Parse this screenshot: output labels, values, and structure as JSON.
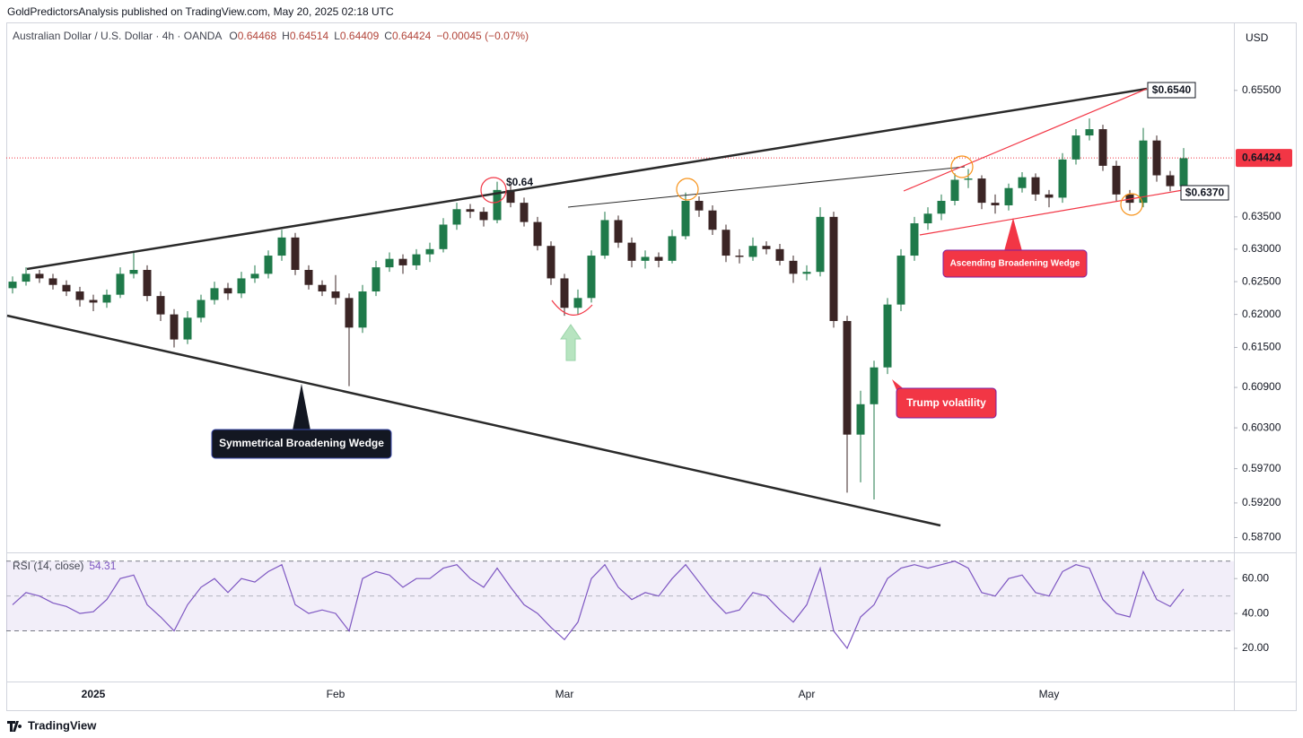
{
  "chart_data": {
    "type": "candlestick",
    "publisher": "GoldPredictorsAnalysis published on TradingView.com, May 20, 2025 02:18 UTC",
    "title": "Australian Dollar / U.S. Dollar · 4h · OANDA",
    "ohlc_labels": [
      "O",
      "H",
      "L",
      "C"
    ],
    "ohlc_values": [
      0.64468,
      0.64514,
      0.64409,
      0.64424
    ],
    "change": "−0.00045 (−0.07%)",
    "y_axis_unit": "USD",
    "brand": "TradingView",
    "categories": [
      null,
      null,
      null,
      null,
      null,
      null,
      "2025",
      null,
      null,
      null,
      null,
      null,
      null,
      null,
      null,
      null,
      null,
      null,
      null,
      null,
      null,
      null,
      null,
      null,
      "Feb",
      null,
      null,
      null,
      null,
      null,
      null,
      null,
      null,
      null,
      null,
      null,
      null,
      null,
      null,
      null,
      null,
      "Mar",
      null,
      null,
      null,
      null,
      null,
      null,
      null,
      null,
      null,
      null,
      null,
      null,
      null,
      null,
      null,
      null,
      null,
      "Apr",
      null,
      null,
      null,
      null,
      null,
      null,
      null,
      null,
      null,
      null,
      null,
      null,
      null,
      null,
      null,
      null,
      null,
      "May",
      null,
      null,
      null,
      null,
      null,
      null,
      null,
      null,
      null,
      null
    ],
    "open": [
      0.624,
      0.625,
      0.6262,
      0.6255,
      0.6245,
      0.6235,
      0.6222,
      0.6218,
      0.623,
      0.6262,
      0.6268,
      0.6228,
      0.62,
      0.6162,
      0.6195,
      0.6222,
      0.624,
      0.6232,
      0.6255,
      0.6262,
      0.629,
      0.6318,
      0.6268,
      0.6245,
      0.6235,
      0.6225,
      0.618,
      0.6235,
      0.6272,
      0.6285,
      0.6275,
      0.6292,
      0.63,
      0.6338,
      0.6362,
      0.6358,
      0.6345,
      0.6392,
      0.6372,
      0.6342,
      0.6305,
      0.6255,
      0.621,
      0.6225,
      0.629,
      0.6345,
      0.631,
      0.6282,
      0.6288,
      0.6282,
      0.632,
      0.6375,
      0.636,
      0.633,
      0.629,
      0.6288,
      0.6305,
      0.63,
      0.6282,
      0.6262,
      0.6265,
      0.635,
      0.619,
      0.602,
      0.6065,
      0.612,
      0.6215,
      0.629,
      0.634,
      0.6355,
      0.6375,
      0.6408,
      0.641,
      0.6372,
      0.6368,
      0.6395,
      0.6412,
      0.6385,
      0.638,
      0.644,
      0.6478,
      0.6488,
      0.643,
      0.6385,
      0.6372,
      0.647,
      0.6415,
      0.6398
    ],
    "high": [
      0.6258,
      0.6272,
      0.6268,
      0.6262,
      0.6252,
      0.6242,
      0.623,
      0.6238,
      0.6272,
      0.6295,
      0.6275,
      0.6235,
      0.6208,
      0.6205,
      0.623,
      0.625,
      0.6248,
      0.6265,
      0.6275,
      0.6298,
      0.633,
      0.6325,
      0.6275,
      0.6252,
      0.626,
      0.6232,
      0.6245,
      0.6282,
      0.6295,
      0.6292,
      0.63,
      0.631,
      0.6348,
      0.6372,
      0.637,
      0.6365,
      0.6405,
      0.64,
      0.638,
      0.635,
      0.6312,
      0.6262,
      0.6238,
      0.6298,
      0.6358,
      0.6352,
      0.6318,
      0.6298,
      0.6295,
      0.633,
      0.6388,
      0.6382,
      0.6368,
      0.6338,
      0.63,
      0.6318,
      0.6312,
      0.6308,
      0.629,
      0.6275,
      0.6365,
      0.6358,
      0.6198,
      0.6085,
      0.613,
      0.6225,
      0.63,
      0.635,
      0.6365,
      0.6385,
      0.6418,
      0.6425,
      0.6415,
      0.6385,
      0.6402,
      0.642,
      0.6418,
      0.6392,
      0.645,
      0.6488,
      0.6505,
      0.6495,
      0.6438,
      0.6392,
      0.649,
      0.6478,
      0.6422,
      0.6458
    ],
    "low": [
      0.6232,
      0.6244,
      0.6248,
      0.6238,
      0.6228,
      0.6212,
      0.6205,
      0.621,
      0.6225,
      0.6255,
      0.622,
      0.619,
      0.615,
      0.6155,
      0.6188,
      0.6215,
      0.6222,
      0.6225,
      0.6248,
      0.6255,
      0.6282,
      0.626,
      0.6238,
      0.6228,
      0.6215,
      0.6092,
      0.6172,
      0.6228,
      0.6265,
      0.6262,
      0.6268,
      0.628,
      0.6295,
      0.633,
      0.6348,
      0.6335,
      0.634,
      0.6365,
      0.6335,
      0.6298,
      0.6245,
      0.6198,
      0.62,
      0.6218,
      0.6285,
      0.6302,
      0.6272,
      0.627,
      0.6272,
      0.6278,
      0.6315,
      0.635,
      0.6322,
      0.628,
      0.6278,
      0.6282,
      0.6292,
      0.6275,
      0.6248,
      0.6252,
      0.6258,
      0.618,
      0.5935,
      0.595,
      0.5925,
      0.611,
      0.6205,
      0.6282,
      0.633,
      0.6345,
      0.6368,
      0.6395,
      0.6362,
      0.6355,
      0.636,
      0.6388,
      0.6375,
      0.6365,
      0.6372,
      0.6432,
      0.647,
      0.6422,
      0.6375,
      0.636,
      0.6365,
      0.6405,
      0.639,
      0.6392
    ],
    "close": [
      0.625,
      0.6262,
      0.6255,
      0.6245,
      0.6235,
      0.6222,
      0.6218,
      0.623,
      0.6262,
      0.6268,
      0.6228,
      0.62,
      0.6162,
      0.6195,
      0.6222,
      0.624,
      0.6232,
      0.6255,
      0.6262,
      0.629,
      0.6318,
      0.6268,
      0.6245,
      0.6235,
      0.6225,
      0.618,
      0.6235,
      0.6272,
      0.6285,
      0.6275,
      0.6292,
      0.63,
      0.6338,
      0.6362,
      0.6358,
      0.6345,
      0.6392,
      0.6372,
      0.6342,
      0.6305,
      0.6255,
      0.621,
      0.6225,
      0.629,
      0.6345,
      0.631,
      0.6282,
      0.6288,
      0.6282,
      0.632,
      0.6375,
      0.636,
      0.633,
      0.629,
      0.6288,
      0.6305,
      0.63,
      0.6282,
      0.6262,
      0.6265,
      0.635,
      0.619,
      0.602,
      0.6065,
      0.612,
      0.6215,
      0.629,
      0.634,
      0.6355,
      0.6375,
      0.6408,
      0.641,
      0.6372,
      0.6368,
      0.6395,
      0.6412,
      0.6385,
      0.638,
      0.644,
      0.6478,
      0.6488,
      0.643,
      0.6385,
      0.6372,
      0.647,
      0.6415,
      0.6398,
      0.6442
    ],
    "up_color": "#1f7a4a",
    "down_color": "#3b2525",
    "log_scale": true,
    "grid": false,
    "ylim": [
      0.585,
      0.666
    ],
    "yticks": [
      {
        "value": 0.655,
        "label": "0.65500"
      },
      {
        "value": 0.635,
        "label": "0.63500"
      },
      {
        "value": 0.63,
        "label": "0.63000"
      },
      {
        "value": 0.625,
        "label": "0.62500"
      },
      {
        "value": 0.62,
        "label": "0.62000"
      },
      {
        "value": 0.615,
        "label": "0.61500"
      },
      {
        "value": 0.609,
        "label": "0.60900"
      },
      {
        "value": 0.603,
        "label": "0.60300"
      },
      {
        "value": 0.597,
        "label": "0.59700"
      },
      {
        "value": 0.592,
        "label": "0.59200"
      },
      {
        "value": 0.587,
        "label": "0.58700"
      }
    ],
    "last_price": {
      "value": 0.64424,
      "label": "0.64424"
    },
    "annotations": [
      "$0.64",
      "$0.6540",
      "$0.6370",
      "Symmetrical Broadening Wedge",
      "Ascending Broadening Wedge",
      "Trump volatility"
    ],
    "rsi": {
      "label": "RSI (14, close)",
      "last": "54.31",
      "color": "#7e57c2",
      "values": [
        45,
        52,
        50,
        46,
        44,
        40,
        41,
        48,
        60,
        62,
        45,
        38,
        30,
        45,
        55,
        60,
        52,
        60,
        58,
        64,
        68,
        45,
        40,
        42,
        40,
        30,
        60,
        64,
        62,
        55,
        60,
        60,
        66,
        68,
        60,
        55,
        66,
        55,
        45,
        40,
        32,
        25,
        35,
        60,
        68,
        55,
        48,
        52,
        50,
        60,
        68,
        58,
        48,
        40,
        42,
        52,
        50,
        42,
        35,
        45,
        66,
        30,
        20,
        38,
        45,
        60,
        66,
        68,
        66,
        68,
        70,
        66,
        52,
        50,
        60,
        62,
        52,
        50,
        64,
        68,
        66,
        48,
        40,
        38,
        64,
        48,
        44,
        54
      ],
      "ylim": [
        2,
        74
      ],
      "yticks": [
        {
          "value": 60,
          "label": "60.00"
        },
        {
          "value": 40,
          "label": "40.00"
        },
        {
          "value": 20,
          "label": "20.00"
        }
      ],
      "band": [
        30,
        70
      ],
      "mid": 50
    }
  }
}
